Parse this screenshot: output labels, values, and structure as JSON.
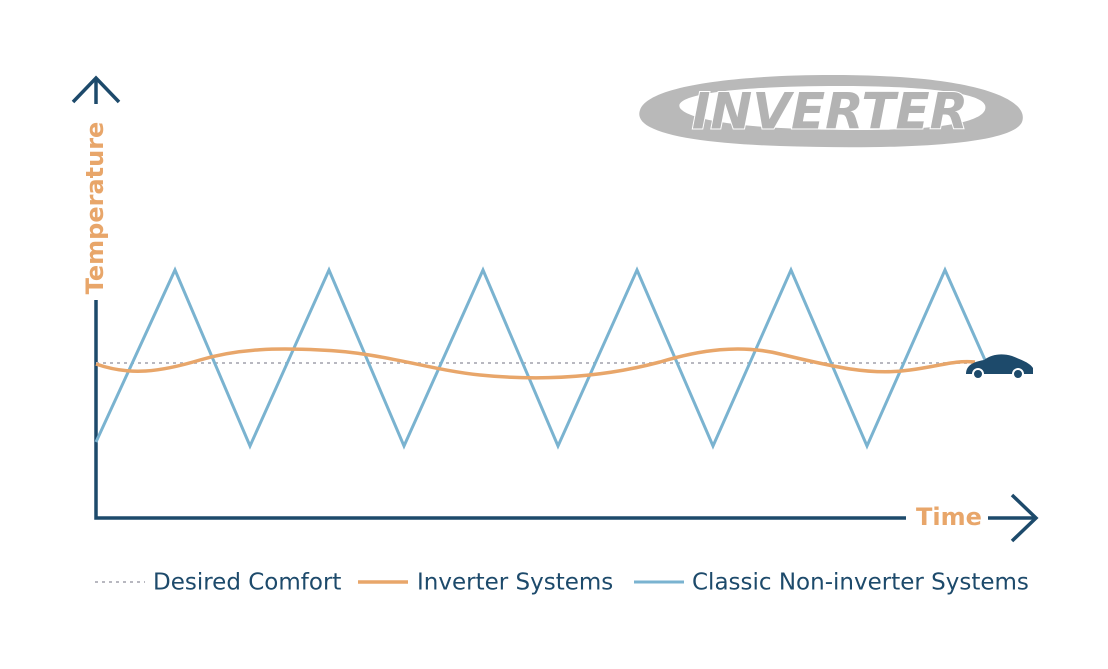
{
  "logo": "INVERTER",
  "axes": {
    "y_label": "Temperature",
    "x_label": "Time"
  },
  "legend": [
    {
      "label": "Desired Comfort"
    },
    {
      "label": "Inverter Systems"
    },
    {
      "label": "Classic Non-inverter Systems"
    }
  ]
}
